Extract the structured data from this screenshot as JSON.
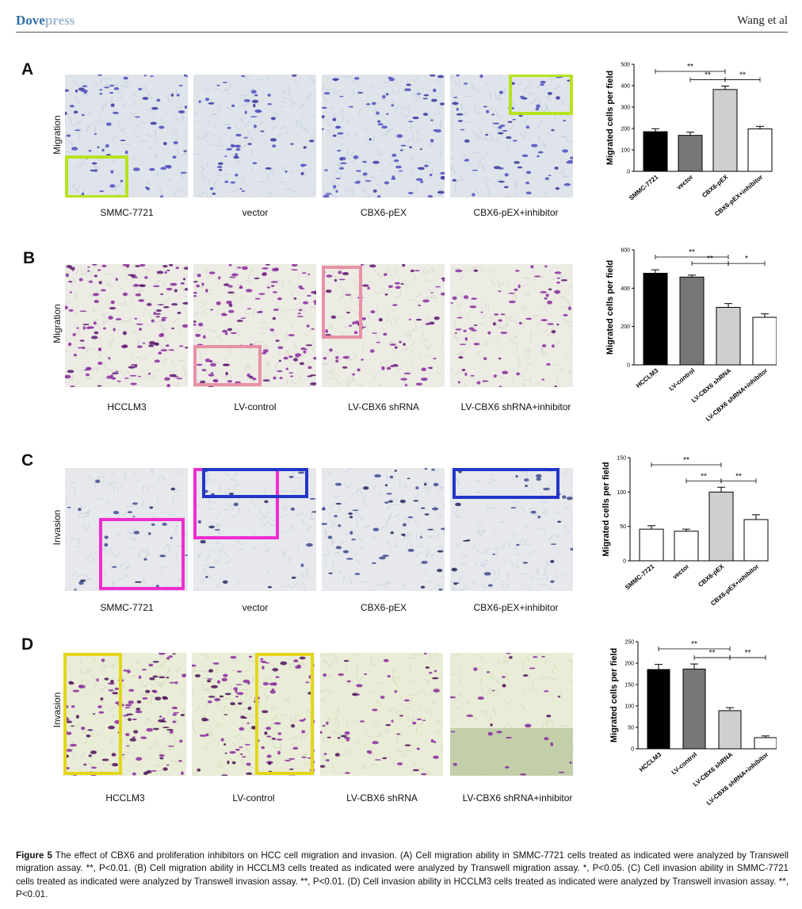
{
  "header": {
    "brand_strong": "Dove",
    "brand_light": "press",
    "authors": "Wang et al"
  },
  "panels": [
    {
      "letter": "A",
      "row_label": "Migration",
      "images": [
        "SMMC-7721",
        "vector",
        "CBX6-pEX",
        "CBX6-pEX+inhibitor"
      ],
      "stain": "blue",
      "chart_data": {
        "type": "bar",
        "categories": [
          "SMMC-7721",
          "vector",
          "CBX6-pEX",
          "CBX6-pEX+inhibitor"
        ],
        "values": [
          185,
          168,
          382,
          198
        ],
        "errors": [
          14,
          15,
          16,
          12
        ],
        "colors": [
          "#000000",
          "#777777",
          "#cfcfcf",
          "#ffffff"
        ],
        "ylabel": "Migrated cells per field",
        "ylim": [
          0,
          500
        ],
        "yticks": [
          0,
          100,
          200,
          300,
          400,
          500
        ],
        "significance": [
          {
            "from": 0,
            "to": 2,
            "label": "**",
            "level": 2
          },
          {
            "from": 1,
            "to": 2,
            "label": "**",
            "level": 1
          },
          {
            "from": 2,
            "to": 3,
            "label": "**",
            "level": 1
          }
        ]
      }
    },
    {
      "letter": "B",
      "row_label": "Migration",
      "images": [
        "HCCLM3",
        "LV-control",
        "LV-CBX6 shRNA",
        "LV-CBX6 shRNA+inhibitor"
      ],
      "stain": "purple",
      "chart_data": {
        "type": "bar",
        "categories": [
          "HCCLM3",
          "LV-control",
          "LV-CBX6 shRNA",
          "LV-CBX6 shRNA+inhibitor"
        ],
        "values": [
          478,
          458,
          300,
          248
        ],
        "errors": [
          18,
          10,
          20,
          18
        ],
        "colors": [
          "#000000",
          "#777777",
          "#cfcfcf",
          "#ffffff"
        ],
        "ylabel": "Migrated cells per field",
        "ylim": [
          0,
          600
        ],
        "yticks": [
          0,
          200,
          400,
          600
        ],
        "significance": [
          {
            "from": 0,
            "to": 2,
            "label": "**",
            "level": 2
          },
          {
            "from": 1,
            "to": 2,
            "label": "**",
            "level": 1
          },
          {
            "from": 2,
            "to": 3,
            "label": "*",
            "level": 1
          }
        ]
      }
    },
    {
      "letter": "C",
      "row_label": "Invasion",
      "images": [
        "SMMC-7721",
        "vector",
        "CBX6-pEX",
        "CBX6-pEX+inhibitor"
      ],
      "stain": "blue-sparse",
      "chart_data": {
        "type": "bar",
        "categories": [
          "SMMC-7721",
          "vector",
          "CBX6-pEX",
          "CBX6-pEX+inhibitor"
        ],
        "values": [
          46,
          43,
          100,
          60
        ],
        "errors": [
          5,
          3,
          7,
          7
        ],
        "colors": [
          "#ffffff",
          "#ffffff",
          "#cfcfcf",
          "#ffffff"
        ],
        "ylabel": "Migrated cells per field",
        "ylim": [
          0,
          150
        ],
        "yticks": [
          0,
          50,
          100,
          150
        ],
        "significance": [
          {
            "from": 0,
            "to": 2,
            "label": "**",
            "level": 2
          },
          {
            "from": 1,
            "to": 2,
            "label": "**",
            "level": 1
          },
          {
            "from": 2,
            "to": 3,
            "label": "**",
            "level": 1
          }
        ]
      }
    },
    {
      "letter": "D",
      "row_label": "Invasion",
      "images": [
        "HCCLM3",
        "LV-control",
        "LV-CBX6 shRNA",
        "LV-CBX6 shRNA+inhibitor"
      ],
      "stain": "purple-green",
      "chart_data": {
        "type": "bar",
        "categories": [
          "HCCLM3",
          "LV-control",
          "LV-CBX6 shRNA",
          "LV-CBX6 shRNA+inhibitor"
        ],
        "values": [
          185,
          186,
          89,
          26
        ],
        "errors": [
          12,
          12,
          7,
          4
        ],
        "colors": [
          "#000000",
          "#777777",
          "#cfcfcf",
          "#ffffff"
        ],
        "ylabel": "Migrated cells per field",
        "ylim": [
          0,
          250
        ],
        "yticks": [
          0,
          50,
          100,
          150,
          200,
          250
        ],
        "significance": [
          {
            "from": 0,
            "to": 2,
            "label": "**",
            "level": 2
          },
          {
            "from": 1,
            "to": 2,
            "label": "**",
            "level": 1
          },
          {
            "from": 2,
            "to": 3,
            "label": "**",
            "level": 1
          }
        ]
      }
    }
  ],
  "caption": {
    "label": "Figure 5",
    "text": " The effect of CBX6 and proliferation inhibitors on HCC cell migration and invasion. (A) Cell migration ability in SMMC-7721 cells treated as indicated were analyzed by Transwell migration assay. **, P<0.01. (B) Cell migration ability in HCCLM3 cells treated as indicated were analyzed by Transwell migration assay. *, P<0.05. (C) Cell invasion ability in SMMC-7721 cells treated as indicated were analyzed by Transwell invasion assay. **, P<0.01. (D) Cell invasion ability in HCCLM3 cells treated as indicated were analyzed by Transwell invasion assay. **, P<0.01."
  }
}
